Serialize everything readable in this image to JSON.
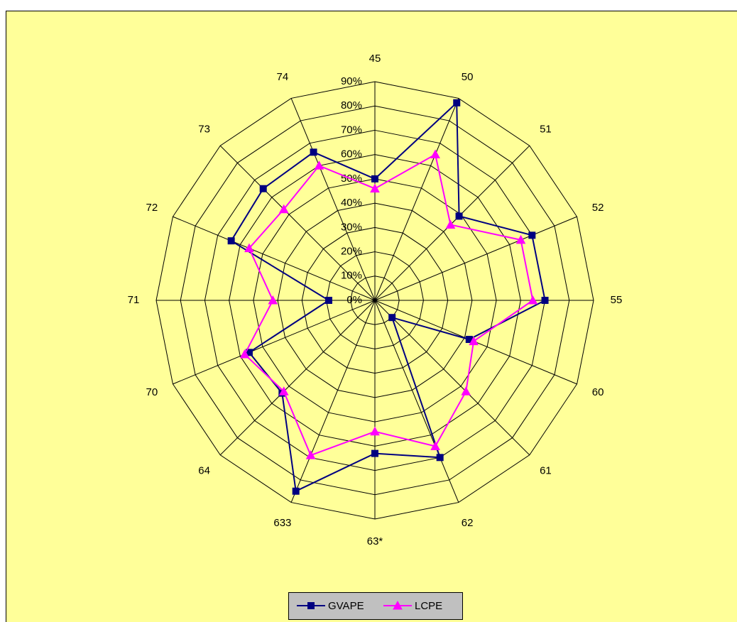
{
  "chart_data": {
    "type": "radar",
    "categories": [
      "45",
      "50",
      "51",
      "52",
      "55",
      "60",
      "61",
      "62",
      "63*",
      "633",
      "64",
      "70",
      "71",
      "72",
      "73",
      "74"
    ],
    "series": [
      {
        "name": "GVAPE",
        "color": "#000080",
        "marker": "square",
        "values": [
          50,
          88,
          49,
          70,
          70,
          42,
          10,
          70,
          63,
          85,
          54,
          56,
          19,
          64,
          65,
          66
        ]
      },
      {
        "name": "LCPE",
        "color": "#ff00ff",
        "marker": "triangle",
        "values": [
          46,
          65,
          44,
          65,
          65,
          44,
          53,
          65,
          54,
          69,
          53,
          58,
          42,
          56,
          53,
          60
        ]
      }
    ],
    "rlim": [
      0,
      90
    ],
    "rticks": [
      {
        "value": 0,
        "label": "0%"
      },
      {
        "value": 10,
        "label": "10%"
      },
      {
        "value": 20,
        "label": "20%"
      },
      {
        "value": 30,
        "label": "30%"
      },
      {
        "value": 40,
        "label": "40%"
      },
      {
        "value": 50,
        "label": "50%"
      },
      {
        "value": 60,
        "label": "60%"
      },
      {
        "value": 70,
        "label": "70%"
      },
      {
        "value": 80,
        "label": "80%"
      },
      {
        "value": 90,
        "label": "90%"
      }
    ],
    "grid": true,
    "legend": "bottom"
  }
}
